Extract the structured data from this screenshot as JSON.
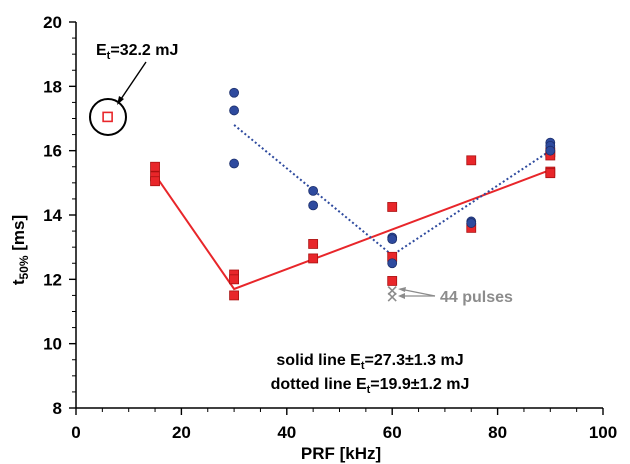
{
  "chart_data": {
    "type": "scatter",
    "xlabel": "PRF [kHz]",
    "ylabel": "t50% [ms]",
    "ylabel_main": "t",
    "ylabel_sub": "50%",
    "ylabel_unit": " [ms]",
    "xlim": [
      0,
      100
    ],
    "ylim": [
      8,
      20
    ],
    "xticks": [
      0,
      20,
      40,
      60,
      80,
      100
    ],
    "yticks": [
      8,
      10,
      12,
      14,
      16,
      18,
      20
    ],
    "grid": false,
    "series": [
      {
        "marker": "square",
        "color": "#e8262a",
        "points": [
          [
            15,
            15.5
          ],
          [
            15,
            15.2
          ],
          [
            15,
            15.05
          ],
          [
            30,
            12.15
          ],
          [
            30,
            12.0
          ],
          [
            30,
            11.5
          ],
          [
            45,
            13.1
          ],
          [
            45,
            12.65
          ],
          [
            60,
            14.25
          ],
          [
            60,
            12.7
          ],
          [
            60,
            11.95
          ],
          [
            75,
            15.7
          ],
          [
            75,
            13.6
          ],
          [
            90,
            15.95
          ],
          [
            90,
            15.85
          ],
          [
            90,
            15.35
          ],
          [
            90,
            15.3
          ]
        ]
      },
      {
        "marker": "circle",
        "color": "#2e4a9e",
        "points": [
          [
            30,
            17.8
          ],
          [
            30,
            17.25
          ],
          [
            30,
            15.6
          ],
          [
            45,
            14.75
          ],
          [
            45,
            14.3
          ],
          [
            60,
            13.3
          ],
          [
            60,
            13.25
          ],
          [
            60,
            12.5
          ],
          [
            75,
            13.8
          ],
          [
            75,
            13.75
          ],
          [
            90,
            16.25
          ],
          [
            90,
            16.15
          ],
          [
            90,
            16.0
          ]
        ]
      },
      {
        "marker": "open-square",
        "color": "#e8262a",
        "points": [
          [
            6,
            17.05
          ]
        ]
      },
      {
        "marker": "cross",
        "color": "#8c8c8c",
        "points": [
          [
            60,
            11.65
          ],
          [
            60,
            11.45
          ]
        ]
      }
    ],
    "lines": [
      {
        "style": "solid",
        "color": "#e8262a",
        "points": [
          [
            15,
            15.25
          ],
          [
            30,
            11.7
          ],
          [
            90,
            15.4
          ]
        ]
      },
      {
        "style": "dotted",
        "color": "#2e4a9e",
        "points": [
          [
            30,
            16.8
          ],
          [
            60,
            12.75
          ],
          [
            90,
            16.0
          ]
        ]
      }
    ],
    "annotations": {
      "energy_label_main": "E",
      "energy_label_sub": "t",
      "energy_label_rest": "=32.2 mJ",
      "pulses_label": "44 pulses",
      "solid_line_prefix": "solid line E",
      "solid_line_sub": "t",
      "solid_line_rest": "=27.3±1.3 mJ",
      "dotted_line_prefix": "dotted line E",
      "dotted_line_sub": "t",
      "dotted_line_rest": "=19.9±1.2 mJ"
    }
  }
}
